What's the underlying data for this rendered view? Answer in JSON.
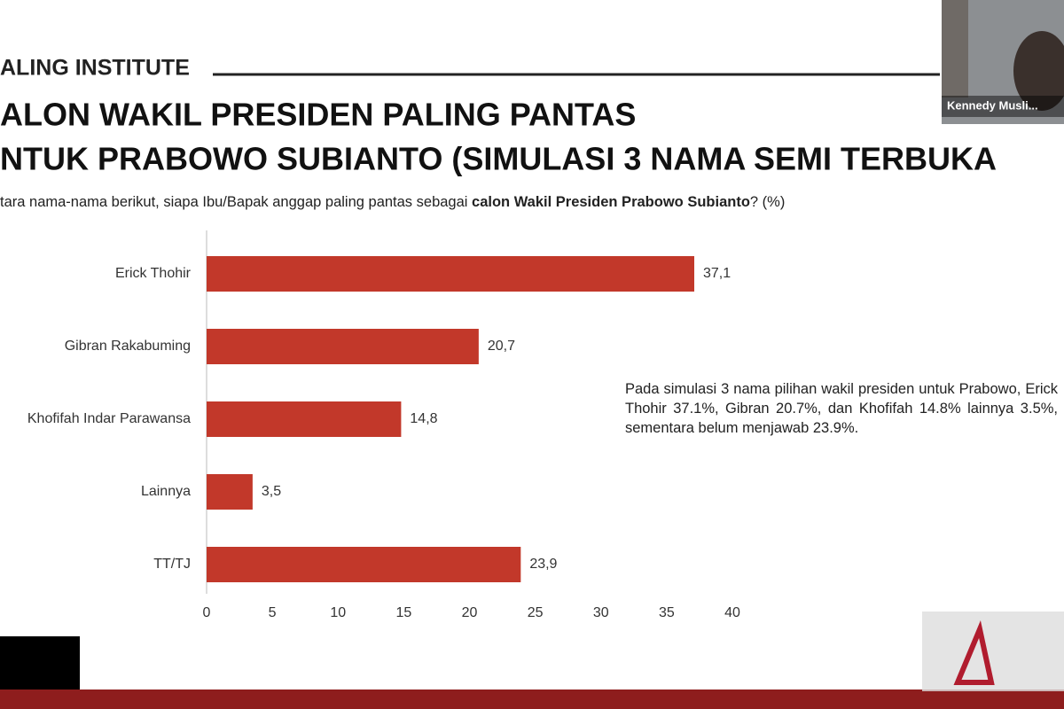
{
  "header": {
    "brand": "ALING INSTITUTE"
  },
  "title": {
    "line1": "ALON WAKIL PRESIDEN PALING PANTAS",
    "line2": "NTUK PRABOWO SUBIANTO (SIMULASI 3 NAMA SEMI TERBUKA"
  },
  "subtitle": {
    "part1": "tara nama-nama berikut, siapa Ibu/Bapak anggap paling pantas sebagai ",
    "part2": "calon Wakil Presiden Prabowo Subianto",
    "part3": "? (%)"
  },
  "annotation": "Pada simulasi 3 nama pilihan wakil presiden untuk Prabowo, Erick Thohir 37.1%, Gibran 20.7%, dan Khofifah 14.8% lainnya 3.5%, sementara belum menjawab 23.9%.",
  "video_label": "Kennedy Musli...",
  "chart_data": {
    "type": "bar",
    "orientation": "horizontal",
    "categories": [
      "Erick Thohir",
      "Gibran Rakabuming",
      "Khofifah Indar Parawansa",
      "Lainnya",
      "TT/TJ"
    ],
    "values": [
      37.1,
      20.7,
      14.8,
      3.5,
      23.9
    ],
    "value_labels": [
      "37,1",
      "20,7",
      "14,8",
      "3,5",
      "23,9"
    ],
    "color": "#c2382a",
    "xlim": [
      0,
      40
    ],
    "xticks": [
      0,
      5,
      10,
      15,
      20,
      25,
      30,
      35,
      40
    ],
    "grid": false
  }
}
